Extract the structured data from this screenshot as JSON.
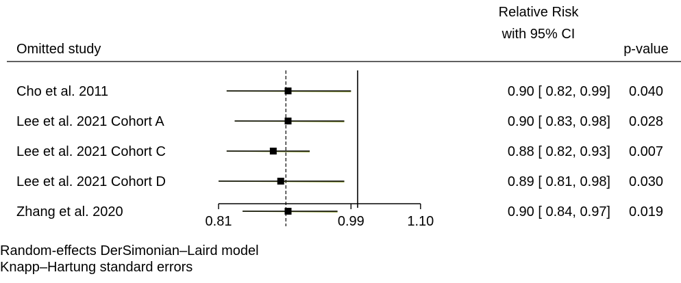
{
  "chart_data": {
    "type": "forest",
    "header": {
      "study_col": "Omitted study",
      "effect_col_line1": "Relative Risk",
      "effect_col_line2": "with 95% CI",
      "p_col": "p-value"
    },
    "studies": [
      {
        "label": "Cho et al. 2011",
        "estimate": 0.9,
        "ci_low": 0.82,
        "ci_high": 0.99,
        "ci_text": "0.90 [ 0.82,  0.99]",
        "p_text": "0.040"
      },
      {
        "label": "Lee et al. 2021 Cohort A",
        "estimate": 0.9,
        "ci_low": 0.83,
        "ci_high": 0.98,
        "ci_text": "0.90 [ 0.83,  0.98]",
        "p_text": "0.028"
      },
      {
        "label": "Lee et al. 2021 Cohort C",
        "estimate": 0.88,
        "ci_low": 0.82,
        "ci_high": 0.93,
        "ci_text": "0.88 [ 0.82,  0.93]",
        "p_text": "0.007"
      },
      {
        "label": "Lee et al. 2021 Cohort D",
        "estimate": 0.89,
        "ci_low": 0.81,
        "ci_high": 0.98,
        "ci_text": "0.89 [ 0.81,  0.98]",
        "p_text": "0.030"
      },
      {
        "label": "Zhang et al. 2020",
        "estimate": 0.9,
        "ci_low": 0.84,
        "ci_high": 0.97,
        "ci_text": "0.90 [ 0.84,  0.97]",
        "p_text": "0.019"
      }
    ],
    "x_axis": {
      "scale": "log",
      "min": 0.81,
      "max": 1.1,
      "ticks": [
        {
          "value": 0.81,
          "label": "0.81"
        },
        {
          "value": 0.99,
          "label": "0.99"
        },
        {
          "value": 1.1,
          "label": "1.10"
        }
      ]
    },
    "reference_line": 1.0,
    "overall_line": 0.897,
    "footnotes": [
      "Random-effects DerSimonian–Laird model",
      "Knapp–Hartung standard errors"
    ],
    "colors": {
      "ci_line": "#000000",
      "ci_line_tint": "#8a9a2a",
      "marker": "#000000",
      "reference": "#000000",
      "overall": "#000000"
    }
  }
}
